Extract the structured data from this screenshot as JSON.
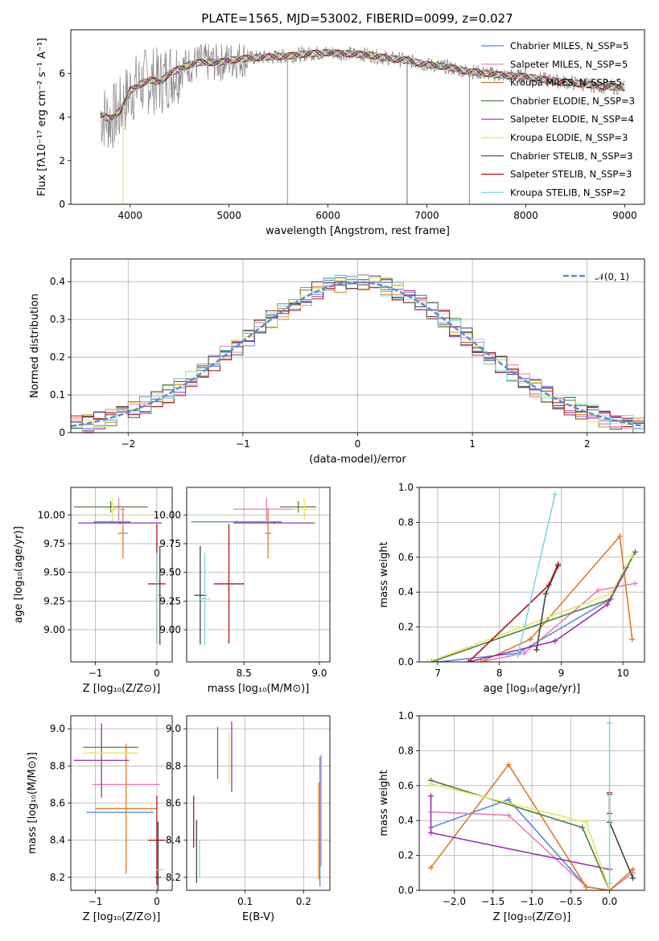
{
  "figure": {
    "title": "PLATE=1565, MJD=53002, FIBERID=0099, z=0.027"
  },
  "chart_data": [
    {
      "id": "spectrum",
      "type": "line",
      "xlabel": "wavelength [Angstrom, rest frame]",
      "ylabel": "Flux [fλ10⁻¹⁷ erg cm⁻² s⁻¹ A⁻¹]",
      "xlim": [
        3400,
        9200
      ],
      "ylim": [
        0,
        8
      ],
      "xticks": [
        4000,
        5000,
        6000,
        7000,
        8000,
        9000
      ],
      "yticks": [
        0,
        2,
        4,
        6
      ],
      "grid": false,
      "legend_position": "top-right",
      "observed_color": "#808080",
      "continuum": {
        "x": [
          3700,
          3800,
          3900,
          4000,
          4100,
          4200,
          4300,
          4400,
          4500,
          4600,
          4700,
          4800,
          4900,
          5000,
          5200,
          5400,
          5600,
          5800,
          6000,
          6200,
          6400,
          6600,
          6800,
          7000,
          7200,
          7400,
          7600,
          7800,
          8000,
          8200,
          8400,
          8600,
          8800,
          9000
        ],
        "y": [
          4.1,
          3.9,
          4.3,
          5.2,
          5.5,
          5.7,
          5.6,
          6.0,
          6.2,
          6.4,
          6.5,
          6.5,
          6.5,
          6.6,
          6.7,
          6.75,
          6.8,
          6.9,
          6.95,
          6.9,
          6.85,
          6.7,
          6.6,
          6.4,
          6.3,
          6.1,
          6.0,
          5.9,
          5.85,
          5.7,
          5.6,
          5.5,
          5.4,
          5.35
        ]
      },
      "series": [
        {
          "name": "Chabrier MILES, N_SSP=5",
          "color": "#5b8bd8"
        },
        {
          "name": "Salpeter MILES, N_SSP=5",
          "color": "#e87db8"
        },
        {
          "name": "Kroupa MILES, N_SSP=5",
          "color": "#e07b25"
        },
        {
          "name": "Chabrier ELODIE, N_SSP=3",
          "color": "#4f7e45"
        },
        {
          "name": "Salpeter ELODIE, N_SSP=4",
          "color": "#9c30b0"
        },
        {
          "name": "Kroupa ELODIE, N_SSP=3",
          "color": "#e3e85a"
        },
        {
          "name": "Chabrier STELIB, N_SSP=3",
          "color": "#444444"
        },
        {
          "name": "Salpeter STELIB, N_SSP=3",
          "color": "#b01515"
        },
        {
          "name": "Kroupa STELIB, N_SSP=2",
          "color": "#7fd8dc"
        }
      ]
    },
    {
      "id": "residuals",
      "type": "line",
      "xlabel": "(data-model)/error",
      "ylabel": "Normed distribution",
      "xlim": [
        -2.5,
        2.5
      ],
      "ylim": [
        0,
        0.46
      ],
      "xticks": [
        -2,
        -1,
        0,
        1,
        2
      ],
      "yticks": [
        0.0,
        0.1,
        0.2,
        0.3,
        0.4
      ],
      "grid": true,
      "legend_position": "top-right",
      "reference_curve": {
        "name": "𝒩(0, 1)",
        "color": "#5b8bd8",
        "mean": 0,
        "sigma": 1
      },
      "bin_width": 0.1
    },
    {
      "id": "age_vs_Z",
      "type": "scatter",
      "xlabel": "Z [log₁₀(Z/Z⊙)]",
      "ylabel": "age  [log₁₀(age/yr)]",
      "xlim": [
        -1.4,
        0.25
      ],
      "ylim": [
        8.72,
        10.24
      ],
      "xticks": [
        -1,
        0
      ],
      "yticks": [
        9.0,
        9.25,
        9.5,
        9.75,
        10.0
      ],
      "ytick_labels": [
        "9.00",
        "9.25",
        "9.50",
        "9.75",
        "10.00"
      ],
      "grid": true,
      "points": [
        {
          "x": -0.73,
          "xerr": 0.3,
          "y": 9.94,
          "yerr": 0.01,
          "color": "#5b8bd8"
        },
        {
          "x": -0.62,
          "xerr": 0.1,
          "y": 10.05,
          "yerr": 0.1,
          "color": "#e87db8"
        },
        {
          "x": -0.55,
          "xerr": 0.08,
          "y": 9.84,
          "yerr": 0.22,
          "color": "#e07b25"
        },
        {
          "x": -0.75,
          "xerr": 0.6,
          "y": 10.07,
          "yerr": 0.05,
          "color": "#4f7e45"
        },
        {
          "x": -0.6,
          "xerr": 0.68,
          "y": 9.93,
          "yerr": 0.01,
          "color": "#9c30b0"
        },
        {
          "x": -0.72,
          "xerr": 0.12,
          "y": 10.05,
          "yerr": 0.1,
          "color": "#e3e85a"
        },
        {
          "x": 0.05,
          "xerr": 0.02,
          "y": 9.3,
          "yerr": 0.43,
          "color": "#444444"
        },
        {
          "x": 0.0,
          "xerr": 0.14,
          "y": 9.4,
          "yerr": 0.52,
          "color": "#b01515"
        },
        {
          "x": 0.0,
          "xerr": 0.02,
          "y": 9.27,
          "yerr": 0.4,
          "color": "#7fd8dc"
        }
      ]
    },
    {
      "id": "age_vs_mass",
      "type": "scatter",
      "xlabel": "mass [log₁₀(M/M⊙)]",
      "ylabel": "",
      "xlim": [
        8.12,
        9.07
      ],
      "ylim": [
        8.72,
        10.24
      ],
      "xticks": [
        8.5,
        9.0
      ],
      "xtick_labels": [
        "8.5",
        "9.0"
      ],
      "yticks": [
        9.0,
        9.25,
        9.5,
        9.75,
        10.0
      ],
      "ytick_labels": [
        "9.00",
        "9.25",
        "9.50",
        "9.75",
        "10.00"
      ],
      "grid": true,
      "points": [
        {
          "x": 8.45,
          "xerr": 0.3,
          "y": 9.94,
          "yerr": 0.01,
          "color": "#5b8bd8"
        },
        {
          "x": 8.65,
          "xerr": 0.22,
          "y": 10.05,
          "yerr": 0.1,
          "color": "#e87db8"
        },
        {
          "x": 8.66,
          "xerr": 0.02,
          "y": 9.84,
          "yerr": 0.22,
          "color": "#e07b25"
        },
        {
          "x": 8.86,
          "xerr": 0.12,
          "y": 10.07,
          "yerr": 0.05,
          "color": "#4f7e45"
        },
        {
          "x": 8.7,
          "xerr": 0.27,
          "y": 9.93,
          "yerr": 0.01,
          "color": "#9c30b0"
        },
        {
          "x": 8.9,
          "xerr": 0.08,
          "y": 10.05,
          "yerr": 0.1,
          "color": "#e3e85a"
        },
        {
          "x": 8.21,
          "xerr": 0.04,
          "y": 9.3,
          "yerr": 0.43,
          "color": "#444444"
        },
        {
          "x": 8.4,
          "xerr": 0.1,
          "y": 9.4,
          "yerr": 0.52,
          "color": "#b01515"
        },
        {
          "x": 8.24,
          "xerr": 0.04,
          "y": 9.27,
          "yerr": 0.4,
          "color": "#7fd8dc"
        }
      ]
    },
    {
      "id": "weight_vs_age",
      "type": "line",
      "xlabel": "age  [log₁₀(age/yr)]",
      "ylabel": "mass weight",
      "xlim": [
        6.7,
        10.35
      ],
      "ylim": [
        0.0,
        1.0
      ],
      "xticks": [
        7,
        8,
        9,
        10
      ],
      "yticks": [
        0.0,
        0.2,
        0.4,
        0.6,
        0.8,
        1.0
      ],
      "ytick_labels": [
        "0.0",
        "0.2",
        "0.4",
        "0.6",
        "0.8",
        "1.0"
      ],
      "grid": true,
      "series": [
        {
          "name": "Chabrier MILES",
          "color": "#5b8bd8",
          "x": [
            7.0,
            8.3,
            9.8,
            10.0
          ],
          "y": [
            0.0,
            0.05,
            0.36,
            0.5
          ]
        },
        {
          "name": "Salpeter MILES",
          "color": "#e87db8",
          "x": [
            7.7,
            8.4,
            9.6,
            10.2
          ],
          "y": [
            0.0,
            0.05,
            0.41,
            0.45
          ]
        },
        {
          "name": "Kroupa MILES",
          "color": "#e07b25",
          "x": [
            7.7,
            8.5,
            9.95,
            10.15
          ],
          "y": [
            0.0,
            0.13,
            0.72,
            0.13
          ]
        },
        {
          "name": "Chabrier ELODIE",
          "color": "#4f7e45",
          "x": [
            6.9,
            9.8,
            10.2
          ],
          "y": [
            0.0,
            0.36,
            0.63
          ]
        },
        {
          "name": "Salpeter ELODIE",
          "color": "#9c30b0",
          "x": [
            7.5,
            8.9,
            9.75,
            10.05
          ],
          "y": [
            0.0,
            0.12,
            0.33,
            0.54
          ]
        },
        {
          "name": "Kroupa ELODIE",
          "color": "#e3e85a",
          "x": [
            6.85,
            9.8,
            10.15
          ],
          "y": [
            0.0,
            0.39,
            0.61
          ]
        },
        {
          "name": "Chabrier STELIB",
          "color": "#444444",
          "x": [
            8.6,
            8.75,
            8.95
          ],
          "y": [
            0.07,
            0.39,
            0.55
          ]
        },
        {
          "name": "Salpeter STELIB",
          "color": "#b01515",
          "x": [
            7.5,
            8.8,
            8.95
          ],
          "y": [
            0.0,
            0.44,
            0.56
          ]
        },
        {
          "name": "Kroupa STELIB",
          "color": "#7fd8dc",
          "x": [
            8.3,
            8.9
          ],
          "y": [
            0.04,
            0.96
          ]
        }
      ]
    },
    {
      "id": "mass_vs_Z",
      "type": "scatter",
      "xlabel": "Z [log₁₀(Z/Z⊙)]",
      "ylabel": "mass [log₁₀(M/M⊙)]",
      "xlim": [
        -1.4,
        0.25
      ],
      "ylim": [
        8.13,
        9.07
      ],
      "xticks": [
        -1,
        0
      ],
      "yticks": [
        8.2,
        8.4,
        8.6,
        8.8,
        9.0
      ],
      "ytick_labels": [
        "8.2",
        "8.4",
        "8.6",
        "8.8",
        "9.0"
      ],
      "grid": true,
      "points": [
        {
          "x": -0.6,
          "xerr": 0.55,
          "y": 8.55,
          "yerr": 0.0,
          "color": "#5b8bd8"
        },
        {
          "x": -0.5,
          "xerr": 0.55,
          "y": 8.7,
          "yerr": 0.0,
          "color": "#e87db8"
        },
        {
          "x": -0.5,
          "xerr": 0.5,
          "y": 8.57,
          "yerr": 0.35,
          "color": "#e07b25"
        },
        {
          "x": -0.75,
          "xerr": 0.45,
          "y": 8.9,
          "yerr": 0.0,
          "color": "#4f7e45"
        },
        {
          "x": -0.9,
          "xerr": 0.45,
          "y": 8.83,
          "yerr": 0.2,
          "color": "#9c30b0"
        },
        {
          "x": -0.75,
          "xerr": 0.45,
          "y": 8.87,
          "yerr": 0.0,
          "color": "#e3e85a"
        },
        {
          "x": 0.02,
          "xerr": 0.05,
          "y": 8.2,
          "yerr": 0.3,
          "color": "#444444"
        },
        {
          "x": 0.0,
          "xerr": 0.14,
          "y": 8.4,
          "yerr": 0.24,
          "color": "#b01515"
        },
        {
          "x": 0.05,
          "xerr": 0.06,
          "y": 8.24,
          "yerr": 0.0,
          "color": "#7fd8dc"
        }
      ]
    },
    {
      "id": "mass_vs_EBV",
      "type": "scatter",
      "xlabel": "E(B-V)",
      "ylabel": "",
      "xlim": [
        0.0,
        0.245
      ],
      "ylim": [
        8.13,
        9.07
      ],
      "xticks": [
        0.1,
        0.2
      ],
      "xtick_labels": [
        "0.1",
        "0.2"
      ],
      "yticks": [
        8.2,
        8.4,
        8.6,
        8.8,
        9.0
      ],
      "ytick_labels": [
        "8.2",
        "8.4",
        "8.6",
        "8.8",
        "9.0"
      ],
      "grid": true,
      "points": [
        {
          "x": 0.228,
          "y": 8.5,
          "yerr": 0.35,
          "color": "#5b8bd8"
        },
        {
          "x": 0.23,
          "y": 8.56,
          "yerr": 0.3,
          "color": "#e87db8"
        },
        {
          "x": 0.226,
          "y": 8.45,
          "yerr": 0.26,
          "color": "#e07b25"
        },
        {
          "x": 0.053,
          "y": 8.87,
          "yerr": 0.14,
          "color": "#4f7e45"
        },
        {
          "x": 0.077,
          "y": 8.85,
          "yerr": 0.19,
          "color": "#9c30b0"
        },
        {
          "x": 0.073,
          "y": 8.84,
          "yerr": 0.14,
          "color": "#e3e85a"
        },
        {
          "x": 0.017,
          "y": 8.34,
          "yerr": 0.17,
          "color": "#444444"
        },
        {
          "x": 0.012,
          "y": 8.5,
          "yerr": 0.14,
          "color": "#b01515"
        },
        {
          "x": 0.022,
          "y": 8.3,
          "yerr": 0.1,
          "color": "#7fd8dc"
        }
      ]
    },
    {
      "id": "weight_vs_Z",
      "type": "line",
      "xlabel": "Z [log₁₀(Z/Z⊙)]",
      "ylabel": "mass weight",
      "xlim": [
        -2.45,
        0.45
      ],
      "ylim": [
        0.0,
        1.0
      ],
      "xticks": [
        -2.0,
        -1.5,
        -1.0,
        -0.5,
        0.0
      ],
      "xtick_labels": [
        "−2.0",
        "−1.5",
        "−1.0",
        "−0.5",
        "0.0"
      ],
      "yticks": [
        0.0,
        0.2,
        0.4,
        0.6,
        0.8,
        1.0
      ],
      "ytick_labels": [
        "0.0",
        "0.2",
        "0.4",
        "0.6",
        "0.8",
        "1.0"
      ],
      "grid": true,
      "series": [
        {
          "name": "Chabrier MILES",
          "color": "#5b8bd8",
          "x": [
            -2.3,
            -1.3,
            -0.3,
            0.0
          ],
          "y": [
            0.36,
            0.52,
            0.02,
            0.0
          ]
        },
        {
          "name": "Salpeter MILES",
          "color": "#e87db8",
          "x": [
            -2.3,
            -1.3,
            -0.3,
            0.0,
            0.3
          ],
          "y": [
            0.45,
            0.43,
            0.02,
            0.0,
            0.1
          ]
        },
        {
          "name": "Kroupa MILES",
          "color": "#e07b25",
          "x": [
            -2.3,
            -1.3,
            -0.3,
            0.0,
            0.3
          ],
          "y": [
            0.13,
            0.72,
            0.02,
            0.0,
            0.12
          ]
        },
        {
          "name": "Chabrier ELODIE",
          "color": "#4f7e45",
          "x": [
            -2.3,
            -0.35,
            0.0
          ],
          "y": [
            0.63,
            0.36,
            0.0
          ]
        },
        {
          "name": "Salpeter ELODIE",
          "color": "#9c30b0",
          "x": [
            -2.3,
            -2.3,
            0.0
          ],
          "y": [
            0.54,
            0.33,
            0.12
          ]
        },
        {
          "name": "Kroupa ELODIE",
          "color": "#e3e85a",
          "x": [
            -2.3,
            -0.3,
            0.0
          ],
          "y": [
            0.61,
            0.39,
            0.0
          ]
        },
        {
          "name": "Chabrier STELIB",
          "color": "#444444",
          "x": [
            0.0,
            0.0,
            0.3
          ],
          "y": [
            0.55,
            0.39,
            0.07
          ]
        },
        {
          "name": "Salpeter STELIB",
          "color": "#b01515",
          "x": [
            0.0,
            0.0
          ],
          "y": [
            0.44,
            0.56
          ]
        },
        {
          "name": "Kroupa STELIB",
          "color": "#7fd8dc",
          "x": [
            0.0,
            0.0
          ],
          "y": [
            0.04,
            0.96
          ]
        }
      ]
    }
  ]
}
